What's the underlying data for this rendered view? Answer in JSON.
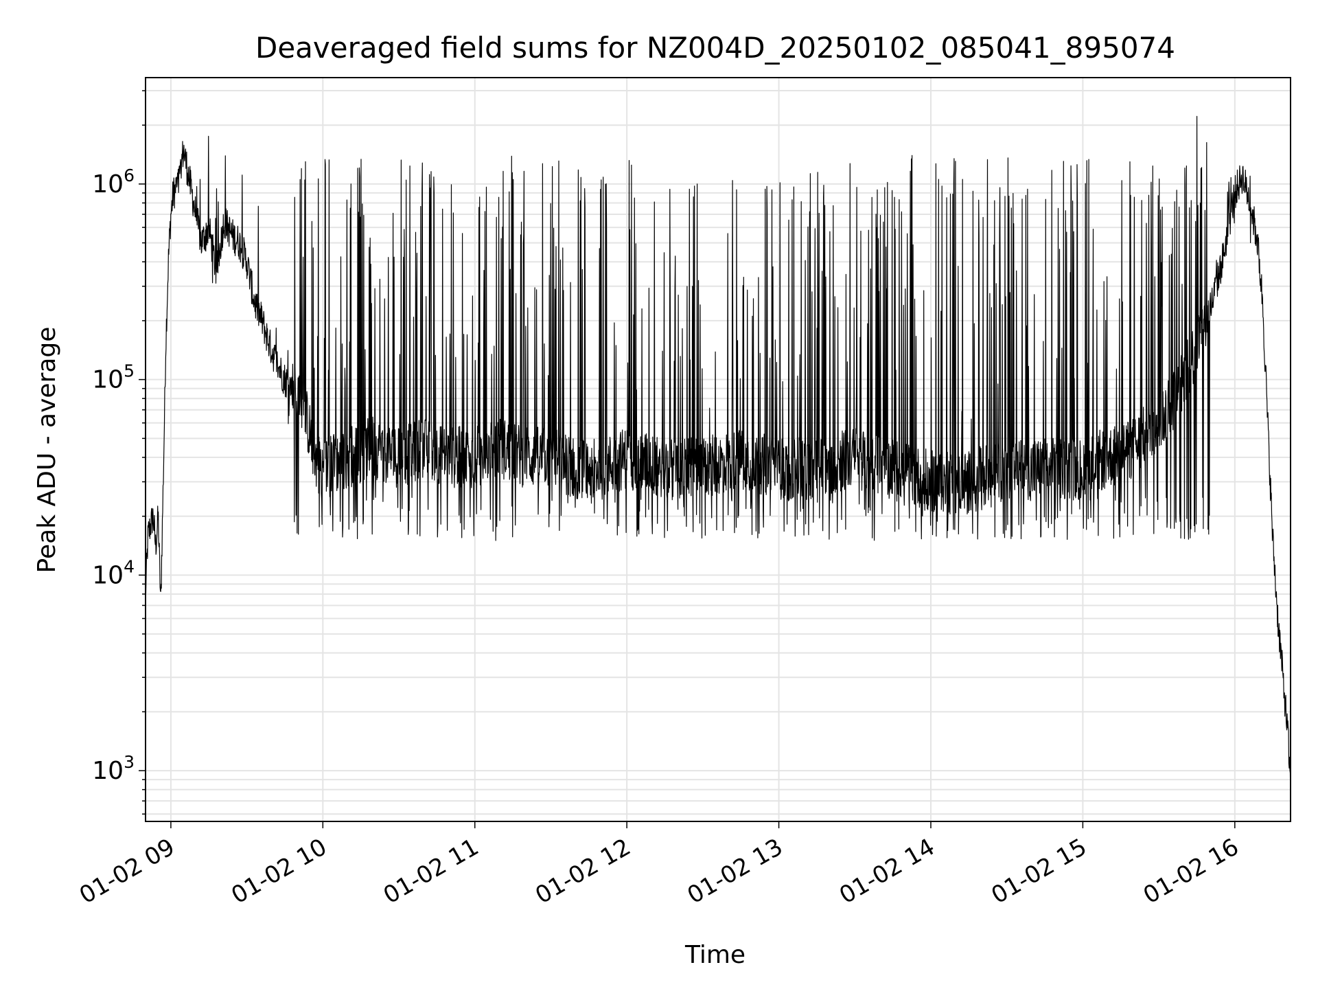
{
  "chart_data": {
    "type": "line",
    "title": "Deaveraged field sums for NZ004D_20250102_085041_895074",
    "xlabel": "Time",
    "ylabel": "Peak ADU - average",
    "yscale": "log",
    "ylim": [
      550,
      3500000
    ],
    "xlim": [
      "01-02 08:50",
      "01-02 16:22"
    ],
    "grid": true,
    "line_color": "#000000",
    "x_ticks": [
      "01-02 09",
      "01-02 10",
      "01-02 11",
      "01-02 12",
      "01-02 13",
      "01-02 14",
      "01-02 15",
      "01-02 16"
    ],
    "y_ticks": [
      {
        "value": 1000,
        "base": "10",
        "exp": "3"
      },
      {
        "value": 10000,
        "base": "10",
        "exp": "4"
      },
      {
        "value": 100000,
        "base": "10",
        "exp": "5"
      },
      {
        "value": 1000000,
        "base": "10",
        "exp": "6"
      }
    ],
    "series": [
      {
        "x": [
          "01-02 08:50",
          "01-02 08:51",
          "01-02 08:52",
          "01-02 08:53",
          "01-02 08:54",
          "01-02 08:55",
          "01-02 08:56",
          "01-02 08:57",
          "01-02 08:58",
          "01-02 08:59",
          "01-02 09:00",
          "01-02 09:01",
          "01-02 09:03",
          "01-02 09:05",
          "01-02 09:07",
          "01-02 09:09",
          "01-02 09:12",
          "01-02 09:15",
          "01-02 09:18",
          "01-02 09:21",
          "01-02 09:24",
          "01-02 09:27",
          "01-02 09:30",
          "01-02 09:33",
          "01-02 09:36",
          "01-02 09:39",
          "01-02 09:42",
          "01-02 09:45",
          "01-02 09:48",
          "01-02 09:51",
          "01-02 09:54",
          "01-02 09:57",
          "01-02 10:00",
          "01-02 10:10",
          "01-02 10:20",
          "01-02 10:30",
          "01-02 10:40",
          "01-02 10:50",
          "01-02 11:00",
          "01-02 11:10",
          "01-02 11:20",
          "01-02 11:30",
          "01-02 11:40",
          "01-02 11:50",
          "01-02 12:00",
          "01-02 12:15",
          "01-02 12:30",
          "01-02 12:45",
          "01-02 13:00",
          "01-02 13:15",
          "01-02 13:30",
          "01-02 13:45",
          "01-02 14:00",
          "01-02 14:15",
          "01-02 14:30",
          "01-02 14:45",
          "01-02 15:00",
          "01-02 15:10",
          "01-02 15:20",
          "01-02 15:30",
          "01-02 15:35",
          "01-02 15:40",
          "01-02 15:45",
          "01-02 15:50",
          "01-02 15:55",
          "01-02 16:00",
          "01-02 16:03",
          "01-02 16:05",
          "01-02 16:07",
          "01-02 16:09",
          "01-02 16:11",
          "01-02 16:13",
          "01-02 16:15",
          "01-02 16:17",
          "01-02 16:19",
          "01-02 16:21",
          "01-02 16:22"
        ],
        "y": [
          8000,
          16000,
          18000,
          20000,
          14000,
          20000,
          7000,
          30000,
          150000,
          400000,
          700000,
          900000,
          1000000,
          1500000,
          1100000,
          800000,
          500000,
          600000,
          350000,
          650000,
          550000,
          500000,
          400000,
          250000,
          200000,
          150000,
          120000,
          100000,
          90000,
          80000,
          60000,
          40000,
          35000,
          40000,
          45000,
          40000,
          45000,
          40000,
          40000,
          45000,
          40000,
          40000,
          35000,
          35000,
          40000,
          35000,
          35000,
          40000,
          35000,
          35000,
          40000,
          35000,
          30000,
          30000,
          35000,
          35000,
          35000,
          40000,
          45000,
          60000,
          75000,
          100000,
          150000,
          220000,
          400000,
          900000,
          1100000,
          900000,
          700000,
          500000,
          250000,
          60000,
          15000,
          6000,
          3000,
          1500,
          800
        ]
      }
    ],
    "spikes": {
      "x_range": [
        "01-02 09:48",
        "01-02 15:50"
      ],
      "count": 150,
      "y_max": [
        700000,
        1400000
      ],
      "y_min": [
        15000,
        25000
      ]
    }
  }
}
